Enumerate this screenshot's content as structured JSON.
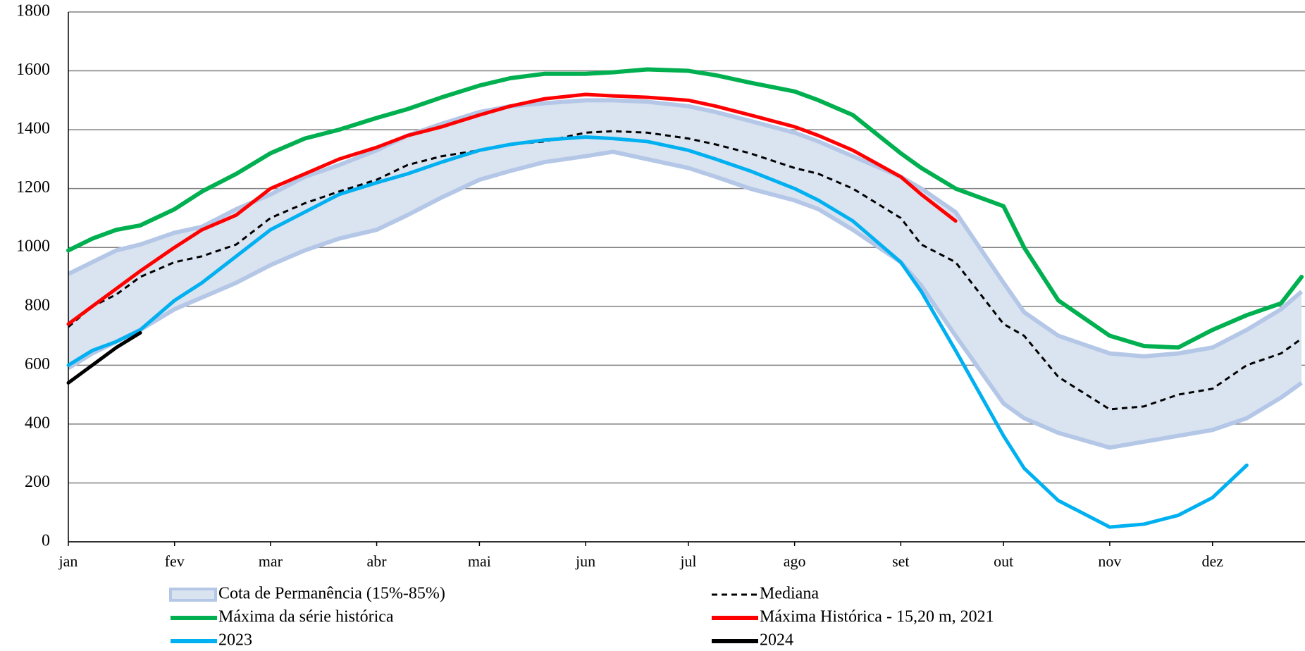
{
  "chart_data": {
    "type": "line",
    "x": [
      1,
      8,
      15,
      22,
      32,
      40,
      50,
      60,
      70,
      80,
      91,
      100,
      110,
      121,
      130,
      140,
      152,
      160,
      170,
      182,
      190,
      200,
      213,
      220,
      230,
      244,
      250,
      260,
      274,
      280,
      290,
      305,
      315,
      325,
      335,
      345,
      355,
      361
    ],
    "xlim": [
      1,
      362
    ],
    "xticks": [
      {
        "value": 1,
        "label": "jan"
      },
      {
        "value": 32,
        "label": "fev"
      },
      {
        "value": 60,
        "label": "mar"
      },
      {
        "value": 91,
        "label": "abr"
      },
      {
        "value": 121,
        "label": "mai"
      },
      {
        "value": 152,
        "label": "jun"
      },
      {
        "value": 182,
        "label": "jul"
      },
      {
        "value": 213,
        "label": "ago"
      },
      {
        "value": 244,
        "label": "set"
      },
      {
        "value": 274,
        "label": "out"
      },
      {
        "value": 305,
        "label": "nov"
      },
      {
        "value": 335,
        "label": "dez"
      }
    ],
    "ylim": [
      0,
      1800
    ],
    "yticks": [
      0,
      200,
      400,
      600,
      800,
      1000,
      1200,
      1400,
      1600,
      1800
    ],
    "grid": true,
    "band": {
      "name": "Cota de Permanência (15%-85%)",
      "color": "#dae3f0",
      "edge_color": "#b4c7e7",
      "upper": [
        910,
        950,
        990,
        1010,
        1050,
        1070,
        1130,
        1180,
        1240,
        1280,
        1330,
        1380,
        1420,
        1460,
        1480,
        1490,
        1500,
        1500,
        1495,
        1480,
        1460,
        1430,
        1390,
        1360,
        1310,
        1240,
        1200,
        1120,
        880,
        780,
        700,
        640,
        630,
        640,
        660,
        720,
        790,
        850
      ],
      "lower": [
        590,
        640,
        680,
        720,
        790,
        830,
        880,
        940,
        990,
        1030,
        1060,
        1110,
        1170,
        1230,
        1260,
        1290,
        1310,
        1325,
        1300,
        1270,
        1240,
        1200,
        1160,
        1130,
        1060,
        950,
        870,
        700,
        470,
        420,
        370,
        320,
        340,
        360,
        380,
        420,
        490,
        540
      ]
    },
    "series": [
      {
        "name": "Mediana",
        "color": "#000000",
        "dash": true,
        "values": [
          730,
          800,
          840,
          900,
          950,
          970,
          1010,
          1100,
          1150,
          1190,
          1230,
          1280,
          1310,
          1330,
          1350,
          1360,
          1390,
          1395,
          1390,
          1370,
          1350,
          1320,
          1270,
          1250,
          1200,
          1100,
          1010,
          950,
          740,
          700,
          560,
          450,
          460,
          500,
          520,
          600,
          640,
          690
        ]
      },
      {
        "name": "Máxima da série histórica",
        "color": "#00b050",
        "values": [
          990,
          1030,
          1060,
          1075,
          1130,
          1190,
          1250,
          1320,
          1370,
          1400,
          1440,
          1470,
          1510,
          1550,
          1575,
          1590,
          1590,
          1595,
          1605,
          1600,
          1585,
          1560,
          1530,
          1500,
          1450,
          1320,
          1270,
          1200,
          1140,
          1000,
          820,
          700,
          665,
          660,
          720,
          770,
          810,
          900
        ]
      },
      {
        "name": "Máxima Histórica - 15,20 m, 2021",
        "color": "#ff0000",
        "values": [
          740,
          800,
          860,
          920,
          1000,
          1060,
          1110,
          1200,
          1250,
          1300,
          1340,
          1380,
          1410,
          1450,
          1480,
          1505,
          1520,
          1515,
          1510,
          1500,
          1480,
          1450,
          1410,
          1380,
          1330,
          1240,
          1180,
          1090,
          null,
          null,
          null,
          null,
          null,
          null,
          null,
          null,
          null,
          null
        ]
      },
      {
        "name": "2023",
        "color": "#00b0f0",
        "values": [
          600,
          650,
          680,
          720,
          820,
          880,
          970,
          1060,
          1120,
          1180,
          1220,
          1250,
          1290,
          1330,
          1350,
          1365,
          1375,
          1370,
          1360,
          1330,
          1300,
          1260,
          1200,
          1160,
          1090,
          950,
          850,
          650,
          360,
          250,
          140,
          50,
          60,
          90,
          150,
          260,
          null,
          null
        ]
      },
      {
        "name": "2024",
        "color": "#000000",
        "values": [
          540,
          600,
          660,
          710,
          null,
          null,
          null,
          null,
          null,
          null,
          null,
          null,
          null,
          null,
          null,
          null,
          null,
          null,
          null,
          null,
          null,
          null,
          null,
          null,
          null,
          null,
          null,
          null,
          null,
          null,
          null,
          null,
          null,
          null,
          null,
          null,
          null,
          null
        ]
      }
    ]
  }
}
